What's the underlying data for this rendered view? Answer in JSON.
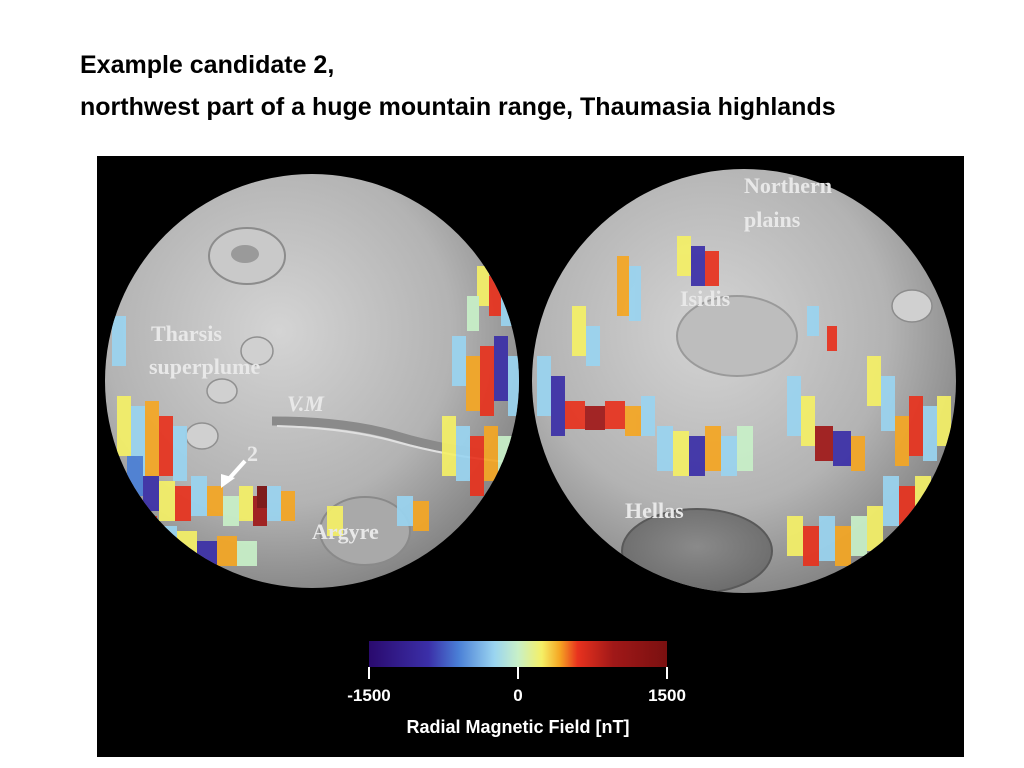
{
  "slide": {
    "title_line1": "Example candidate 2,",
    "title_line2": "northwest part of a huge mountain range, Thaumasia highlands"
  },
  "map": {
    "labels": {
      "tharsis_1": "Tharsis",
      "tharsis_2": "superplume",
      "vm": "V.M",
      "candidate": "2",
      "argyre": "Argyre",
      "northern_1": "Northern",
      "northern_2": "plains",
      "isidis": "Isidis",
      "hellas": "Hellas"
    },
    "colorbar": {
      "min_label": "-1500",
      "mid_label": "0",
      "max_label": "1500",
      "title": "Radial Magnetic Field [nT]",
      "colors": [
        "#2a0a6e",
        "#3b2fa8",
        "#4a7fd6",
        "#9ad4f0",
        "#c8f0c8",
        "#f5f066",
        "#f5a623",
        "#e8321e",
        "#a01818",
        "#7a1010"
      ]
    }
  }
}
